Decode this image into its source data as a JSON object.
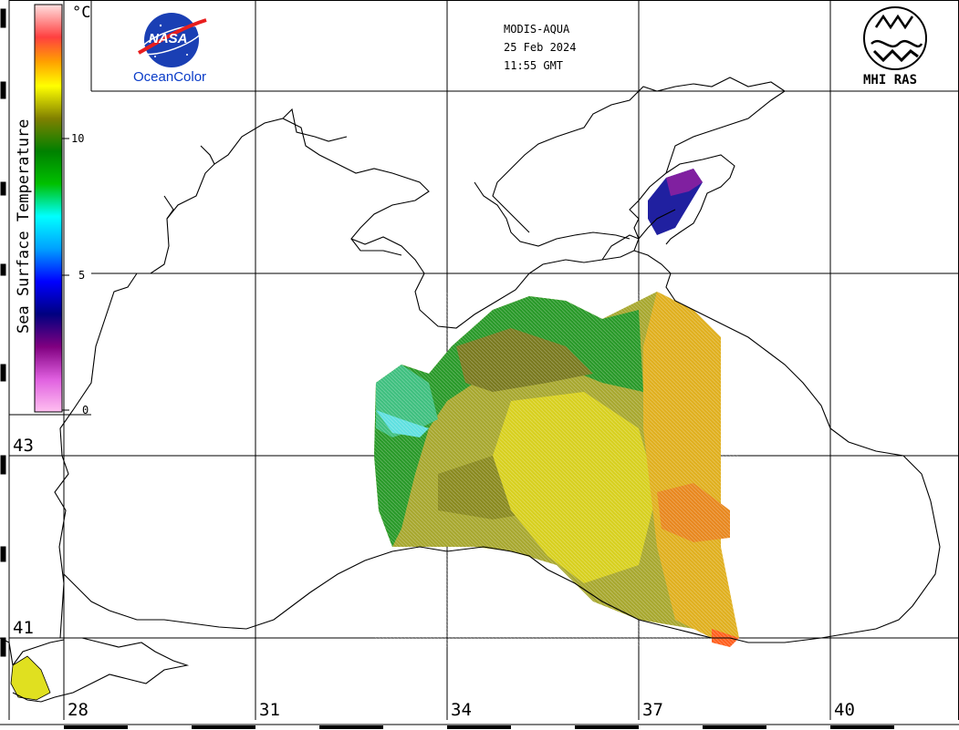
{
  "product": {
    "sensor": "MODIS-AQUA",
    "date": "25 Feb 2024",
    "time": "11:55 GMT"
  },
  "logos": {
    "nasa": "NASA",
    "oceancolor": "OceanColor",
    "institute": "MHI RAS"
  },
  "legend": {
    "title": "Sea Surface Temperature",
    "unit": "°C",
    "ticks": [
      "10",
      "5",
      "0"
    ],
    "colors": [
      "#ffc0f0",
      "#a000a0",
      "#000080",
      "#0000ff",
      "#00c0ff",
      "#00ffff",
      "#00a000",
      "#808000",
      "#ffff00",
      "#ff8000",
      "#ff4040",
      "#ffe0e0"
    ]
  },
  "latitudes": [
    "43",
    "41"
  ],
  "longitudes": [
    "28",
    "31",
    "34",
    "37",
    "40"
  ],
  "colors": {
    "coastline": "#000000",
    "grid": "#000000",
    "sea": "#ffffff"
  }
}
